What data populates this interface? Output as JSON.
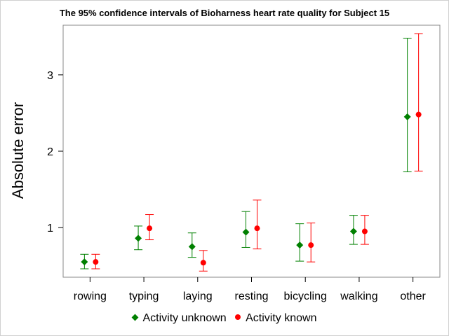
{
  "chart_data": {
    "type": "scatter",
    "title": "The 95% confidence intervals of Bioharness heart rate quality for Subject 15",
    "xlabel": "",
    "ylabel": "Absolute error",
    "categories": [
      "rowing",
      "typing",
      "laying",
      "resting",
      "bicycling",
      "walking",
      "other"
    ],
    "ylim": [
      0.35,
      3.65
    ],
    "yticks": [
      1,
      2,
      3
    ],
    "legend_position": "bottom",
    "series": [
      {
        "name": "Activity unknown",
        "color": "#008000",
        "marker": "diamond",
        "values": [
          0.55,
          0.86,
          0.75,
          0.94,
          0.77,
          0.95,
          2.45
        ],
        "lower": [
          0.46,
          0.71,
          0.61,
          0.74,
          0.56,
          0.78,
          1.73
        ],
        "upper": [
          0.65,
          1.02,
          0.93,
          1.21,
          1.05,
          1.16,
          3.48
        ]
      },
      {
        "name": "Activity known",
        "color": "#ff0000",
        "marker": "circle",
        "values": [
          0.55,
          0.99,
          0.54,
          0.99,
          0.77,
          0.95,
          2.48
        ],
        "lower": [
          0.46,
          0.84,
          0.43,
          0.72,
          0.55,
          0.78,
          1.74
        ],
        "upper": [
          0.65,
          1.17,
          0.7,
          1.36,
          1.06,
          1.16,
          3.54
        ]
      }
    ]
  }
}
